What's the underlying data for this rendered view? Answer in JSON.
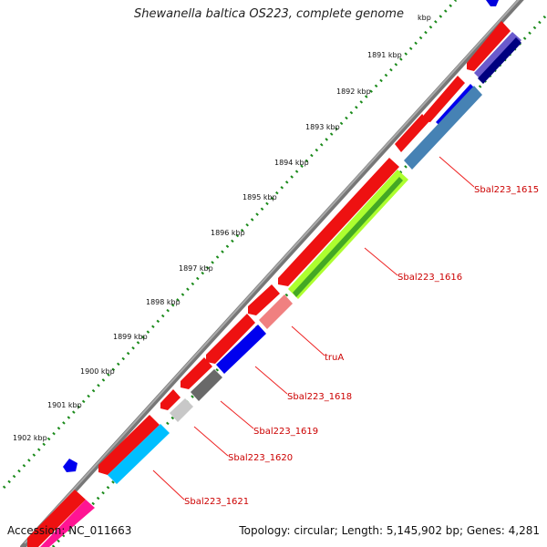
{
  "title": "Shewanella baltica OS223, complete genome",
  "footer": {
    "accession": "Accession: NC_011663",
    "summary": "Topology: circular; Length: 5,145,902 bp; Genes: 4,281"
  },
  "tick_labels": [
    "kbp",
    "1891 kbp",
    "1892 kbp",
    "1893 kbp",
    "1894 kbp",
    "1895 kbp",
    "1896 kbp",
    "1897 kbp",
    "1898 kbp",
    "1899 kbp",
    "1900 kbp",
    "1901 kbp",
    "1902 kbp"
  ],
  "gene_labels": [
    "Sbal223_1615",
    "Sbal223_1616",
    "truA",
    "Sbal223_1618",
    "Sbal223_1619",
    "Sbal223_1620",
    "Sbal223_1621"
  ],
  "colors": {
    "backbone": "#888888",
    "tick_dots": "#1a8a1a",
    "forward_genes": "#ee1111",
    "label_text": "#cc0000",
    "leader_line": "#ee2222"
  }
}
